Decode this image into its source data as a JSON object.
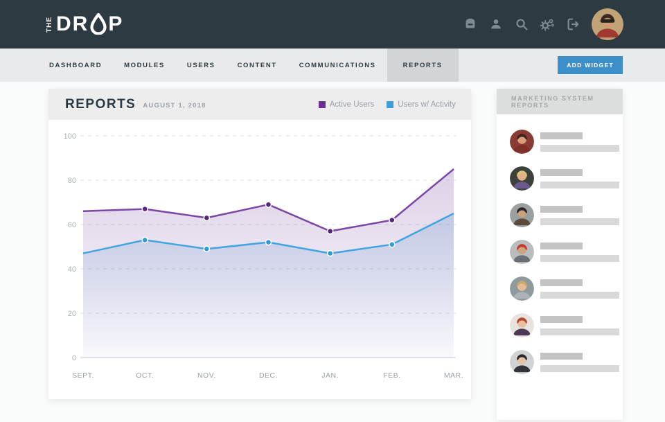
{
  "app": {
    "brand_the": "THE",
    "brand_dr": "DR",
    "brand_p": "P",
    "brand_drop_icon": "water-drop-icon"
  },
  "header": {
    "icons": [
      "archive-icon",
      "user-icon",
      "search-icon",
      "settings-gears-icon",
      "logout-icon"
    ],
    "avatar": "man-sunglasses-red-plaid-photo"
  },
  "nav": {
    "items": [
      {
        "label": "DASHBOARD",
        "active": false
      },
      {
        "label": "MODULES",
        "active": false
      },
      {
        "label": "USERS",
        "active": false
      },
      {
        "label": "CONTENT",
        "active": false
      },
      {
        "label": "COMMUNICATIONS",
        "active": false
      },
      {
        "label": "REPORTS",
        "active": true
      }
    ],
    "add_widget_label": "ADD WIDGET"
  },
  "report_card": {
    "title": "REPORTS",
    "date": "AUGUST 1, 2018",
    "legend": [
      {
        "label": "Active Users",
        "color": "#6b2f94"
      },
      {
        "label": "Users w/ Activity",
        "color": "#3da0dc"
      }
    ]
  },
  "chart_data": {
    "type": "area",
    "title": "Reports - August 1, 2018",
    "x": [
      "SEPT.",
      "OCT.",
      "NOV.",
      "DEC.",
      "JAN.",
      "FEB.",
      "MAR."
    ],
    "series": [
      {
        "name": "Active Users",
        "values": [
          66,
          67,
          63,
          69,
          57,
          62,
          85
        ],
        "line_color": "#7c46a4",
        "dot_color": "#54277d",
        "fill_color": "#7c4da2"
      },
      {
        "name": "Users w/ Activity",
        "values": [
          47,
          53,
          49,
          52,
          47,
          51,
          65
        ],
        "line_color": "#41a5e1",
        "dot_color": "#2f9ad6",
        "fill_color": "#6092cd"
      }
    ],
    "ylim": [
      0,
      100
    ],
    "yticks": [
      0,
      20,
      40,
      60,
      80,
      100
    ],
    "grid": "dashed-horizontal",
    "legend_position": "top-right-header",
    "xlabel": "",
    "ylabel": ""
  },
  "sidebar": {
    "title": "MARKETING SYSTEM REPORTS",
    "items": [
      {
        "avatar": "man-glasses-red-plaid-photo",
        "colors": {
          "bg": "#8a3a34",
          "skin": "#d9a078",
          "hair": "#3a2620",
          "shirt": "#7e2f2a"
        }
      },
      {
        "avatar": "person-blond-purple-shirt-photo",
        "colors": {
          "bg": "#3c423a",
          "skin": "#e2b08a",
          "hair": "#d9c17a",
          "shirt": "#6b5a8e"
        }
      },
      {
        "avatar": "man-black-cap-beard-photo",
        "colors": {
          "bg": "#9aa0a0",
          "skin": "#caa27c",
          "hair": "#26262a",
          "shirt": "#5d4a3a"
        }
      },
      {
        "avatar": "man-red-cap-beard-photo",
        "colors": {
          "bg": "#b9bdbd",
          "skin": "#cfa57e",
          "hair": "#c23b30",
          "shirt": "#6a6f75"
        }
      },
      {
        "avatar": "woman-blonde-laptop-photo",
        "colors": {
          "bg": "#8f9a9d",
          "skin": "#e6bd97",
          "hair": "#c8a96e",
          "shirt": "#aab3b8"
        }
      },
      {
        "avatar": "woman-red-curly-hair-photo",
        "colors": {
          "bg": "#e8e3de",
          "skin": "#e8c0a0",
          "hair": "#b5472e",
          "shirt": "#4a3a55"
        }
      },
      {
        "avatar": "woman-short-dark-hair-photo",
        "colors": {
          "bg": "#cfd3d4",
          "skin": "#e6c3a3",
          "hair": "#2f2a2c",
          "shirt": "#33343a"
        }
      }
    ]
  },
  "colors": {
    "header_bg": "#2d3a42",
    "nav_bg": "#e9eaeb",
    "nav_active_bg": "#d2d4d6",
    "accent_blue": "#3d8fc9",
    "axis_text": "#a9afb4",
    "grid_line": "#dbdddf"
  },
  "header_avatar_colors": {
    "bg": "#c2a277",
    "skin": "#cf9d72",
    "hair": "#3a2a22",
    "shirt": "#a0392f",
    "glasses": "#26231f"
  }
}
